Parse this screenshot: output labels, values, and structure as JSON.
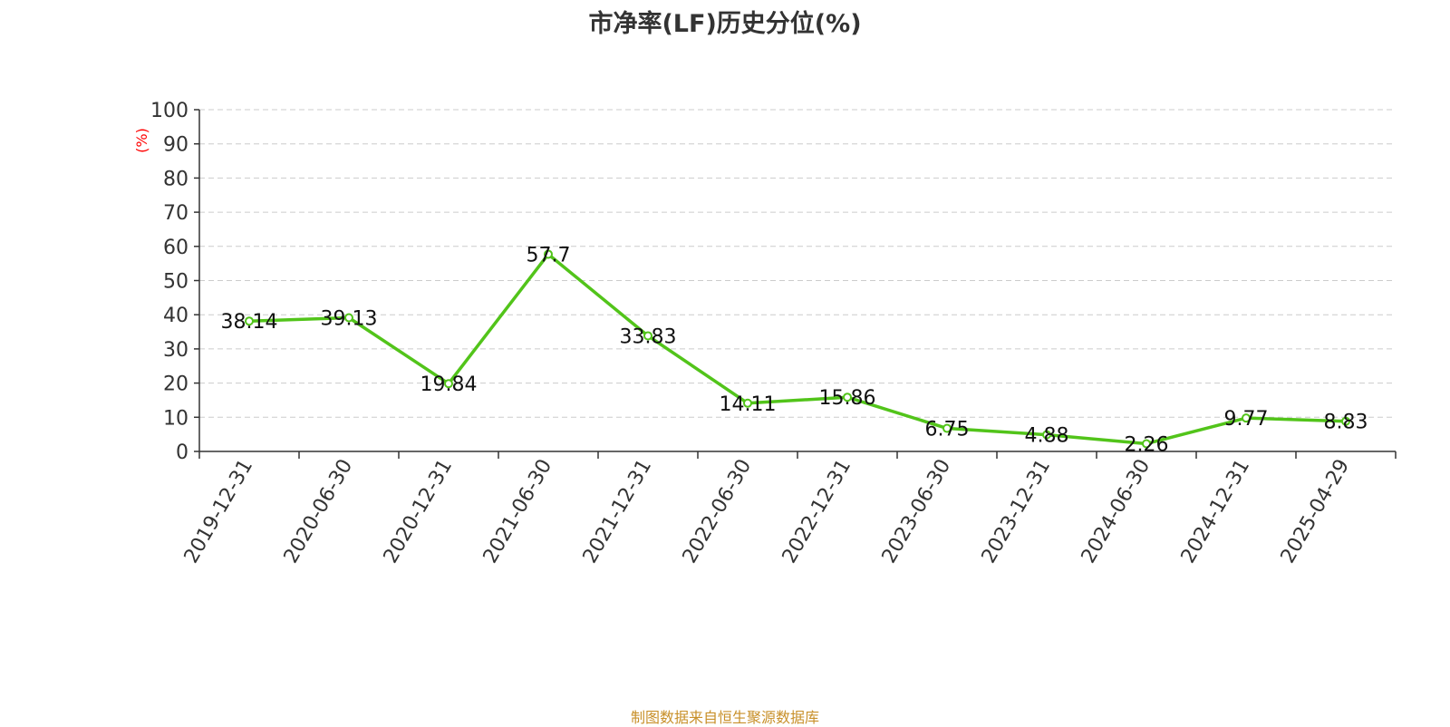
{
  "chart_data": {
    "type": "line",
    "title": "市净率(LF)历史分位(%)",
    "ylabel": "(%)",
    "xlabel": "",
    "ylim": [
      0,
      100
    ],
    "yticks": [
      0,
      10,
      20,
      30,
      40,
      50,
      60,
      70,
      80,
      90,
      100
    ],
    "categories": [
      "2019-12-31",
      "2020-06-30",
      "2020-12-31",
      "2021-06-30",
      "2021-12-31",
      "2022-06-30",
      "2022-12-31",
      "2023-06-30",
      "2023-12-31",
      "2024-06-30",
      "2024-12-31",
      "2025-04-29"
    ],
    "series": [
      {
        "values": [
          38.14,
          39.13,
          19.84,
          57.7,
          33.83,
          14.11,
          15.86,
          6.75,
          4.88,
          2.26,
          9.77,
          8.83
        ]
      }
    ],
    "grid": true,
    "line_color": "#52c41a",
    "ylabel_color": "#ff0000",
    "title_color": "#333333",
    "grid_color": "#cccccc"
  },
  "footer": {
    "text": "制图数据来自恒生聚源数据库",
    "color": "#c8902a"
  }
}
